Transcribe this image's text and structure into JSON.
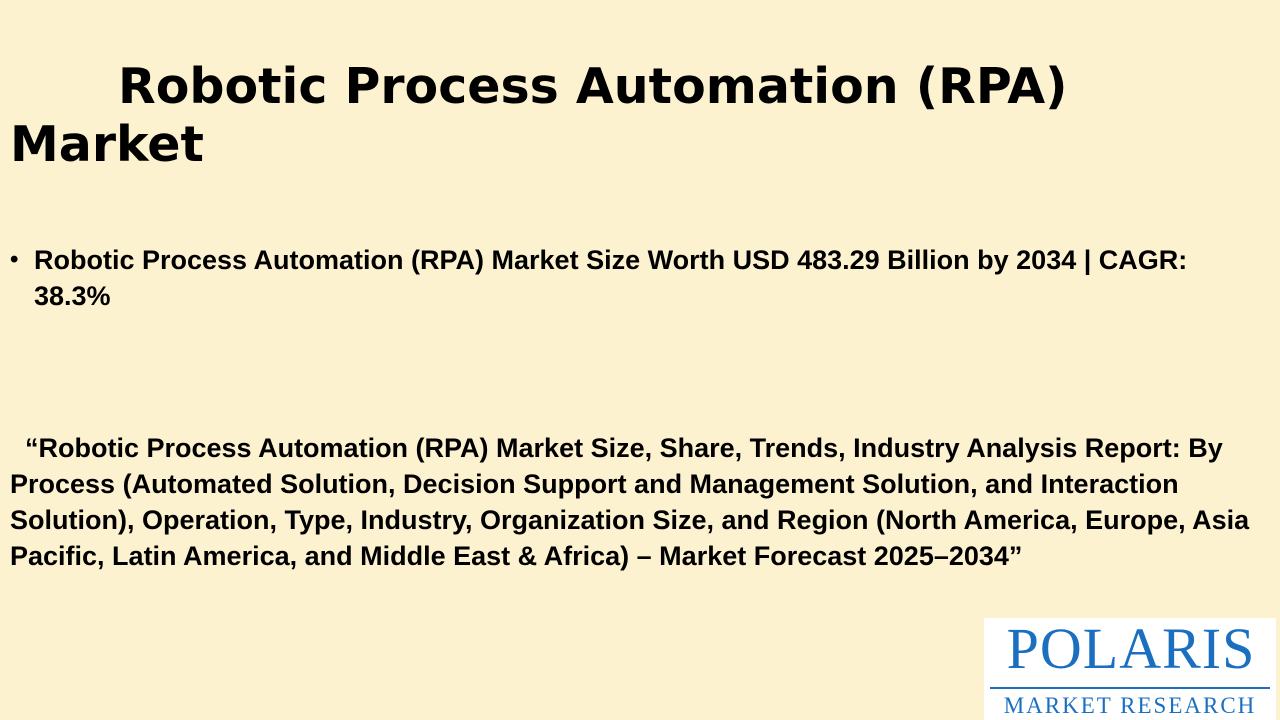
{
  "title": "Robotic Process Automation (RPA) Market",
  "bullet": "Robotic Process Automation (RPA) Market Size Worth USD 483.29 Billion by 2034 | CAGR: 38.3%",
  "report_title": "  “Robotic Process Automation (RPA) Market Size, Share, Trends, Industry Analysis Report: By Process (Automated Solution, Decision Support and Management Solution, and Interaction Solution), Operation, Type, Industry, Organization Size, and Region (North America, Europe, Asia Pacific, Latin America, and Middle East & Africa) – Market Forecast 2025–2034”",
  "logo": {
    "name": "POLARIS",
    "subtitle": "MARKET RESEARCH",
    "color": "#1a6fc0"
  },
  "colors": {
    "background": "#fdf2d0"
  }
}
